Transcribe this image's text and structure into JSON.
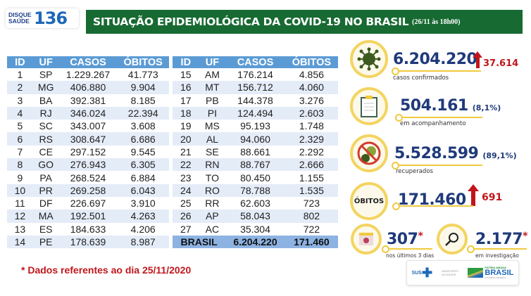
{
  "logo": {
    "small_text": "DISQUE SAÚDE",
    "number": "136"
  },
  "header": {
    "title": "SITUAÇÃO EPIDEMIOLÓGICA DA COVID-19 NO BRASIL",
    "date": "(26/11 às 18h00)"
  },
  "table": {
    "columns": [
      "ID",
      "UF",
      "CASOS",
      "ÓBITOS"
    ],
    "left_rows": [
      [
        "1",
        "SP",
        "1.229.267",
        "41.773"
      ],
      [
        "2",
        "MG",
        "406.880",
        "9.904"
      ],
      [
        "3",
        "BA",
        "392.381",
        "8.185"
      ],
      [
        "4",
        "RJ",
        "346.024",
        "22.394"
      ],
      [
        "5",
        "SC",
        "343.007",
        "3.608"
      ],
      [
        "6",
        "RS",
        "308.647",
        "6.686"
      ],
      [
        "7",
        "CE",
        "297.152",
        "9.545"
      ],
      [
        "8",
        "GO",
        "276.943",
        "6.305"
      ],
      [
        "9",
        "PA",
        "268.524",
        "6.884"
      ],
      [
        "10",
        "PR",
        "269.258",
        "6.043"
      ],
      [
        "11",
        "DF",
        "226.697",
        "3.910"
      ],
      [
        "12",
        "MA",
        "192.501",
        "4.263"
      ],
      [
        "13",
        "ES",
        "184.633",
        "4.206"
      ],
      [
        "14",
        "PE",
        "178.639",
        "8.987"
      ]
    ],
    "right_rows": [
      [
        "15",
        "AM",
        "176.214",
        "4.856"
      ],
      [
        "16",
        "MT",
        "156.712",
        "4.060"
      ],
      [
        "17",
        "PB",
        "144.378",
        "3.276"
      ],
      [
        "18",
        "PI",
        "124.494",
        "2.603"
      ],
      [
        "19",
        "MS",
        "95.193",
        "1.748"
      ],
      [
        "20",
        "AL",
        "94.060",
        "2.329"
      ],
      [
        "21",
        "SE",
        "88.661",
        "2.292"
      ],
      [
        "22",
        "RN",
        "88.767",
        "2.666"
      ],
      [
        "23",
        "TO",
        "80.450",
        "1.155"
      ],
      [
        "24",
        "RO",
        "78.788",
        "1.535"
      ],
      [
        "25",
        "RR",
        "62.603",
        "723"
      ],
      [
        "26",
        "AP",
        "58.043",
        "802"
      ],
      [
        "27",
        "AC",
        "35.304",
        "722"
      ]
    ],
    "total": {
      "label": "BRASIL",
      "casos": "6.204.220",
      "obitos": "171.460"
    }
  },
  "footnote": "* Dados referentes ao dia 25/11/2020",
  "stats": {
    "confirmed": {
      "value": "6.204.220",
      "delta": "37.614",
      "caption": "casos confirmados",
      "icon": "virus-icon"
    },
    "monitoring": {
      "value": "504.161",
      "pct": "(8,1%)",
      "caption": "em acompanhamento",
      "icon": "clipboard-icon"
    },
    "recovered": {
      "value": "5.528.599",
      "pct": "(89,1%)",
      "caption": "recuperados",
      "icon": "no-virus-icon"
    },
    "deaths": {
      "label": "ÓBITOS",
      "value": "171.460",
      "delta": "691"
    },
    "last3days": {
      "value": "307",
      "star": "*",
      "caption": "nos últimos 3 dias",
      "icon": "calendar-icon"
    },
    "investigation": {
      "value": "2.177",
      "star": "*",
      "caption": "em investigação",
      "icon": "magnifier-icon"
    }
  },
  "footer_logos": {
    "sus": "SUS",
    "ministry": "MINISTÉRIO DA SAÚDE",
    "gov_top": "PÁTRIA AMADA",
    "gov_main": "BRASIL",
    "gov_bottom": "GOVERNO FEDERAL"
  },
  "colors": {
    "banner_green": "#176a32",
    "table_header": "#5b9bd5",
    "navy": "#1f3a7a",
    "red": "#c0161b",
    "gold": "#f3d460"
  }
}
